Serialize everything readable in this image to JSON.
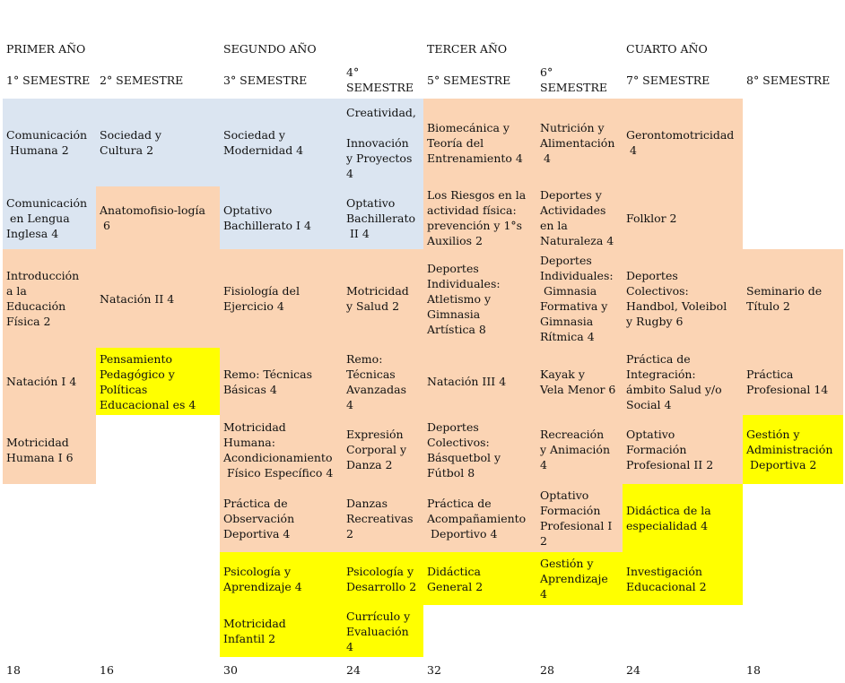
{
  "colors": {
    "blue": "#dbe5f1",
    "peach": "#fbd4b4",
    "yellow": "#ffff00"
  },
  "years": [
    "PRIMER AÑO",
    "SEGUNDO AÑO",
    "TERCER AÑO",
    "CUARTO AÑO"
  ],
  "semesters": [
    {
      "label": "1° SEMESTRE",
      "total": "18",
      "courses": [
        {
          "name": "Comunicación\n Humana 2",
          "color": "blue"
        },
        {
          "name": "Comunicación\n en Lengua\nInglesa 4",
          "color": "blue"
        },
        {
          "name": "Introducción\na la\nEducación\nFísica 2",
          "color": "peach"
        },
        {
          "name": "Natación I 4",
          "color": "peach"
        },
        {
          "name": "Motricidad\nHumana I 6",
          "color": "peach"
        }
      ]
    },
    {
      "label": "2° SEMESTRE",
      "total": "16",
      "courses": [
        {
          "name": "Sociedad y\nCultura 2",
          "color": "blue"
        },
        {
          "name": "Anatomofisio-logía\n 6",
          "color": "peach"
        },
        {
          "name": "Natación II 4",
          "color": "peach"
        },
        {
          "name": "Pensamiento\nPedagógico y\nPolíticas\nEducacional es 4",
          "color": "yellow"
        }
      ]
    },
    {
      "label": "3° SEMESTRE",
      "total": "30",
      "courses": [
        {
          "name": "Sociedad y\nModernidad 4",
          "color": "blue"
        },
        {
          "name": "Optativo\nBachillerato I 4",
          "color": "blue"
        },
        {
          "name": "Fisiología del\nEjercicio 4",
          "color": "peach"
        },
        {
          "name": "Remo: Técnicas\nBásicas 4",
          "color": "peach"
        },
        {
          "name": "Motricidad\nHumana:\nAcondicionamiento\n Físico Específico 4",
          "color": "peach"
        },
        {
          "name": "Práctica de\nObservación\nDeportiva 4",
          "color": "peach"
        },
        {
          "name": "Psicología y\nAprendizaje 4",
          "color": "yellow"
        },
        {
          "name": "Motricidad\nInfantil 2",
          "color": "yellow"
        }
      ]
    },
    {
      "label": "4°\nSEMESTRE",
      "total": "24",
      "courses": [
        {
          "name": "Creatividad,\n\nInnovación\ny Proyectos\n4",
          "color": "blue"
        },
        {
          "name": "Optativo\nBachillerato\n II 4",
          "color": "blue"
        },
        {
          "name": "Motricidad\ny Salud 2",
          "color": "peach"
        },
        {
          "name": "Remo:\nTécnicas\nAvanzadas\n4",
          "color": "peach"
        },
        {
          "name": "Expresión\nCorporal y\nDanza 2",
          "color": "peach"
        },
        {
          "name": "Danzas\nRecreativas\n2",
          "color": "peach"
        },
        {
          "name": "Psicología y\nDesarrollo 2",
          "color": "yellow"
        },
        {
          "name": "Currículo y\nEvaluación\n4",
          "color": "yellow"
        }
      ]
    },
    {
      "label": "5° SEMESTRE",
      "total": "32",
      "courses": [
        {
          "name": "Biomecánica y\nTeoría del\nEntrenamiento 4",
          "color": "peach"
        },
        {
          "name": "Los Riesgos en la\nactividad física:\nprevención y 1°s\nAuxilios 2",
          "color": "peach"
        },
        {
          "name": "Deportes\nIndividuales:\nAtletismo y\nGimnasia\nArtística 8",
          "color": "peach"
        },
        {
          "name": "Natación III 4",
          "color": "peach"
        },
        {
          "name": "Deportes\nColectivos:\nBásquetbol y\nFútbol 8",
          "color": "peach"
        },
        {
          "name": "Práctica de\nAcompañamiento\n Deportivo 4",
          "color": "peach"
        },
        {
          "name": "Didáctica\nGeneral 2",
          "color": "yellow"
        }
      ]
    },
    {
      "label": "6°\nSEMESTRE",
      "total": "28",
      "courses": [
        {
          "name": "Nutrición y\nAlimentación\n 4",
          "color": "peach"
        },
        {
          "name": "Deportes y\nActividades\nen la\nNaturaleza 4",
          "color": "peach"
        },
        {
          "name": "Deportes\nIndividuales:\n Gimnasia\nFormativa y\nGimnasia\nRítmica 4",
          "color": "peach"
        },
        {
          "name": "Kayak y\nVela Menor 6",
          "color": "peach"
        },
        {
          "name": "Recreación\ny Animación\n4",
          "color": "peach"
        },
        {
          "name": "Optativo\nFormación\nProfesional I\n2",
          "color": "peach"
        },
        {
          "name": "Gestión y\nAprendizaje\n4",
          "color": "yellow"
        }
      ]
    },
    {
      "label": "7° SEMESTRE",
      "total": "24",
      "courses": [
        {
          "name": "Gerontomotricidad\n 4",
          "color": "peach"
        },
        {
          "name": "Folklor 2",
          "color": "peach"
        },
        {
          "name": "Deportes\nColectivos:\nHandbol, Voleibol\ny Rugby 6",
          "color": "peach"
        },
        {
          "name": "Práctica de\nIntegración:\námbito Salud y/o\nSocial 4",
          "color": "peach"
        },
        {
          "name": "Optativo\nFormación\nProfesional II 2",
          "color": "peach"
        },
        {
          "name": "Didáctica de la\nespecialidad 4",
          "color": "yellow"
        },
        {
          "name": "Investigación\nEducacional 2",
          "color": "yellow"
        }
      ]
    },
    {
      "label": "8° SEMESTRE",
      "total": "18",
      "start_row": 2,
      "courses": [
        {
          "name": "Seminario de\nTítulo 2",
          "color": "peach"
        },
        {
          "name": "Práctica\nProfesional 14",
          "color": "peach"
        },
        {
          "name": "Gestión y\nAdministración\n Deportiva 2",
          "color": "yellow"
        }
      ]
    }
  ]
}
